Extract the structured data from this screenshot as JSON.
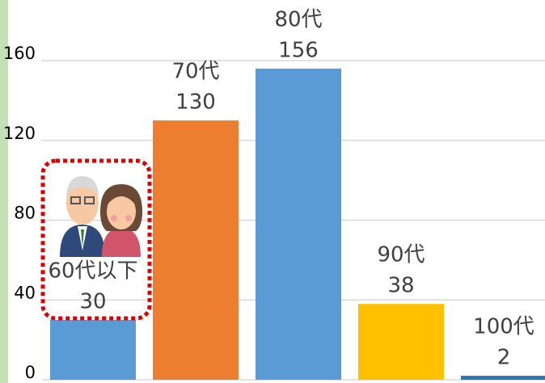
{
  "chart_data": {
    "type": "bar",
    "categories": [
      "60代以下",
      "70代",
      "80代",
      "90代",
      "100代"
    ],
    "values": [
      30,
      130,
      156,
      38,
      2
    ],
    "colors": [
      "#5b9bd5",
      "#ed7d31",
      "#5b9bd5",
      "#ffc000",
      "#2e75b6"
    ],
    "ylim": [
      0,
      160
    ],
    "yticks": [
      0,
      40,
      80,
      120,
      160
    ],
    "grid": true
  }
}
